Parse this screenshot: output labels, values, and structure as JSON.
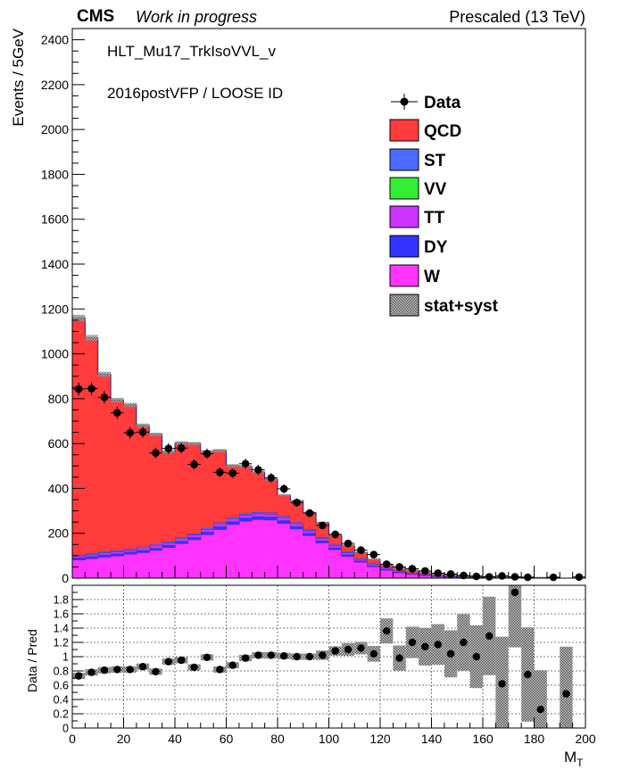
{
  "header": {
    "cms": "CMS",
    "work_in_progress": "Work in progress",
    "energy": "Prescaled (13 TeV)"
  },
  "annotations": {
    "trigger": "HLT_Mu17_TrkIsoVVL_v",
    "era": "2016postVFP / LOOSE ID"
  },
  "legend": {
    "data": "Data",
    "qcd": "QCD",
    "st": "ST",
    "vv": "VV",
    "tt": "TT",
    "dy": "DY",
    "w": "W",
    "unc": "stat+syst"
  },
  "colors": {
    "qcd": "#ff3b3b",
    "st": "#4a6bff",
    "vv": "#33ee33",
    "tt": "#cc33ff",
    "dy": "#3333ff",
    "w": "#ff33ff"
  },
  "chart_data": [
    {
      "type": "stacked-histogram",
      "ylabel": "Events / 5GeV",
      "xlim": [
        0,
        200
      ],
      "ylim": [
        0,
        2450
      ],
      "yticks": [
        0,
        200,
        400,
        600,
        800,
        1000,
        1200,
        1400,
        1600,
        1800,
        2000,
        2200,
        2400
      ],
      "bin_edges_step": 5,
      "bin_low_edges": [
        0,
        5,
        10,
        15,
        20,
        25,
        30,
        35,
        40,
        45,
        50,
        55,
        60,
        65,
        70,
        75,
        80,
        85,
        90,
        95,
        100,
        105,
        110,
        115,
        120,
        125,
        130,
        135,
        140,
        145,
        150,
        155,
        160,
        165,
        170,
        175,
        180,
        185,
        190,
        195
      ],
      "stack_order": [
        "W",
        "DY",
        "TT",
        "VV",
        "ST",
        "QCD"
      ],
      "series": [
        {
          "name": "W",
          "values": [
            82,
            88,
            95,
            100,
            108,
            115,
            125,
            137,
            155,
            172,
            195,
            218,
            240,
            255,
            262,
            260,
            245,
            220,
            190,
            158,
            128,
            98,
            72,
            52,
            36,
            25,
            17,
            12,
            8,
            6,
            4,
            3,
            2,
            2,
            1,
            1,
            1,
            1,
            0,
            0
          ]
        },
        {
          "name": "DY",
          "values": [
            10,
            10,
            10,
            10,
            10,
            10,
            10,
            11,
            11,
            11,
            12,
            13,
            13,
            14,
            14,
            14,
            13,
            12,
            11,
            10,
            9,
            8,
            6,
            5,
            4,
            3,
            2,
            2,
            1,
            1,
            1,
            1,
            0,
            0,
            0,
            0,
            0,
            0,
            0,
            0
          ]
        },
        {
          "name": "TT",
          "values": [
            8,
            8,
            9,
            9,
            9,
            10,
            10,
            10,
            11,
            11,
            11,
            12,
            12,
            12,
            12,
            12,
            12,
            11,
            11,
            10,
            9,
            8,
            7,
            6,
            5,
            4,
            3,
            3,
            2,
            2,
            1,
            1,
            1,
            1,
            0,
            0,
            0,
            0,
            0,
            0
          ]
        },
        {
          "name": "VV",
          "values": [
            1,
            1,
            1,
            1,
            1,
            1,
            1,
            1,
            1,
            1,
            1,
            1,
            1,
            1,
            1,
            1,
            1,
            1,
            1,
            1,
            1,
            1,
            1,
            1,
            1,
            0,
            0,
            0,
            0,
            0,
            0,
            0,
            0,
            0,
            0,
            0,
            0,
            0,
            0,
            0
          ]
        },
        {
          "name": "ST",
          "values": [
            4,
            4,
            4,
            4,
            4,
            5,
            5,
            5,
            5,
            5,
            5,
            5,
            6,
            6,
            6,
            6,
            6,
            5,
            5,
            5,
            4,
            4,
            3,
            3,
            2,
            2,
            2,
            1,
            1,
            1,
            1,
            1,
            0,
            0,
            0,
            0,
            0,
            0,
            0,
            0
          ]
        },
        {
          "name": "QCD",
          "values": [
            1055,
            960,
            790,
            670,
            640,
            540,
            490,
            400,
            420,
            400,
            340,
            320,
            230,
            210,
            178,
            147,
            93,
            96,
            75,
            64,
            40,
            28,
            26,
            17,
            12,
            11,
            11,
            7,
            6,
            5,
            4,
            3,
            3,
            3,
            2,
            2,
            1,
            1,
            0,
            0
          ]
        }
      ],
      "data": {
        "name": "Data",
        "values": [
          843,
          845,
          806,
          737,
          648,
          651,
          558,
          578,
          580,
          507,
          555,
          472,
          468,
          510,
          483,
          447,
          398,
          337,
          290,
          235,
          195,
          155,
          125,
          105,
          62,
          50,
          42,
          32,
          22,
          18,
          12,
          8,
          6,
          10,
          6,
          4,
          null,
          4,
          null,
          5
        ]
      }
    },
    {
      "type": "scatter",
      "ylabel": "Data / Pred",
      "xlabel": "M_T",
      "xlim": [
        0,
        200
      ],
      "ylim": [
        0,
        2
      ],
      "xticks": [
        0,
        20,
        40,
        60,
        80,
        100,
        120,
        140,
        160,
        180,
        200
      ],
      "yticks": [
        0,
        0.2,
        0.4,
        0.6,
        0.8,
        1,
        1.2,
        1.4,
        1.6,
        1.8
      ],
      "points": [
        {
          "x": 2.5,
          "y": 0.73,
          "e": 0.02
        },
        {
          "x": 7.5,
          "y": 0.78,
          "e": 0.02
        },
        {
          "x": 12.5,
          "y": 0.81,
          "e": 0.02
        },
        {
          "x": 17.5,
          "y": 0.82,
          "e": 0.02
        },
        {
          "x": 22.5,
          "y": 0.82,
          "e": 0.02
        },
        {
          "x": 27.5,
          "y": 0.86,
          "e": 0.02
        },
        {
          "x": 32.5,
          "y": 0.79,
          "e": 0.02
        },
        {
          "x": 37.5,
          "y": 0.93,
          "e": 0.02
        },
        {
          "x": 42.5,
          "y": 0.95,
          "e": 0.02
        },
        {
          "x": 47.5,
          "y": 0.85,
          "e": 0.02
        },
        {
          "x": 52.5,
          "y": 0.99,
          "e": 0.02
        },
        {
          "x": 57.5,
          "y": 0.82,
          "e": 0.02
        },
        {
          "x": 62.5,
          "y": 0.88,
          "e": 0.02
        },
        {
          "x": 67.5,
          "y": 0.98,
          "e": 0.02
        },
        {
          "x": 72.5,
          "y": 1.02,
          "e": 0.02
        },
        {
          "x": 77.5,
          "y": 1.02,
          "e": 0.02
        },
        {
          "x": 82.5,
          "y": 1.01,
          "e": 0.02
        },
        {
          "x": 87.5,
          "y": 1.0,
          "e": 0.02
        },
        {
          "x": 92.5,
          "y": 1.0,
          "e": 0.02
        },
        {
          "x": 97.5,
          "y": 1.02,
          "e": 0.03
        },
        {
          "x": 102.5,
          "y": 1.08,
          "e": 0.03
        },
        {
          "x": 107.5,
          "y": 1.1,
          "e": 0.04
        },
        {
          "x": 112.5,
          "y": 1.12,
          "e": 0.04
        },
        {
          "x": 117.5,
          "y": 1.04,
          "e": 0.05
        },
        {
          "x": 122.5,
          "y": 1.36,
          "e": 0.08
        },
        {
          "x": 127.5,
          "y": 0.98,
          "e": 0.08
        },
        {
          "x": 132.5,
          "y": 1.2,
          "e": 0.1
        },
        {
          "x": 137.5,
          "y": 1.14,
          "e": 0.12
        },
        {
          "x": 142.5,
          "y": 1.17,
          "e": 0.13
        },
        {
          "x": 147.5,
          "y": 1.04,
          "e": 0.15
        },
        {
          "x": 152.5,
          "y": 1.2,
          "e": 0.18
        },
        {
          "x": 157.5,
          "y": 1.0,
          "e": 0.2
        },
        {
          "x": 162.5,
          "y": 1.29,
          "e": 0.25
        },
        {
          "x": 167.5,
          "y": 0.62,
          "e": 0.3
        },
        {
          "x": 172.5,
          "y": 1.9,
          "e": 0.35
        },
        {
          "x": 177.5,
          "y": 0.75,
          "e": 0.3
        },
        {
          "x": 182.5,
          "y": 0.26,
          "e": 0.25
        },
        {
          "x": 192.5,
          "y": 0.48,
          "e": 0.3
        }
      ],
      "grid": true
    }
  ]
}
